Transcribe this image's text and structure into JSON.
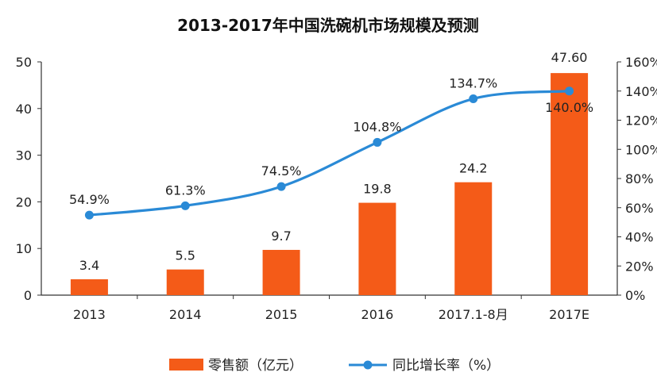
{
  "chart_data": {
    "type": "bar+line",
    "title": "2013-2017年中国洗碗机市场规模及预测",
    "categories": [
      "2013",
      "2014",
      "2015",
      "2016",
      "2017.1-8月",
      "2017E"
    ],
    "series": [
      {
        "name": "零售额（亿元）",
        "type": "bar",
        "axis": "left",
        "color": "#f45b18",
        "values": [
          3.4,
          5.5,
          9.7,
          19.8,
          24.2,
          47.6
        ],
        "labels": [
          "3.4",
          "5.5",
          "9.7",
          "19.8",
          "24.2",
          "47.60"
        ]
      },
      {
        "name": "同比增长率（%）",
        "type": "line",
        "axis": "right",
        "color": "#2a8ad6",
        "values": [
          54.9,
          61.3,
          74.5,
          104.8,
          134.7,
          140.0
        ],
        "labels": [
          "54.9%",
          "61.3%",
          "74.5%",
          "104.8%",
          "134.7%",
          "140.0%"
        ]
      }
    ],
    "y_left": {
      "min": 0,
      "max": 50,
      "step": 10,
      "ticks": [
        "0",
        "10",
        "20",
        "30",
        "40",
        "50"
      ]
    },
    "y_right": {
      "min": 0,
      "max": 160,
      "step": 20,
      "ticks": [
        "0%",
        "20%",
        "40%",
        "60%",
        "80%",
        "100%",
        "120%",
        "140%",
        "160%"
      ]
    },
    "legend": [
      "零售额（亿元）",
      "同比增长率（%）"
    ],
    "legend_position": "bottom",
    "grid": false
  }
}
